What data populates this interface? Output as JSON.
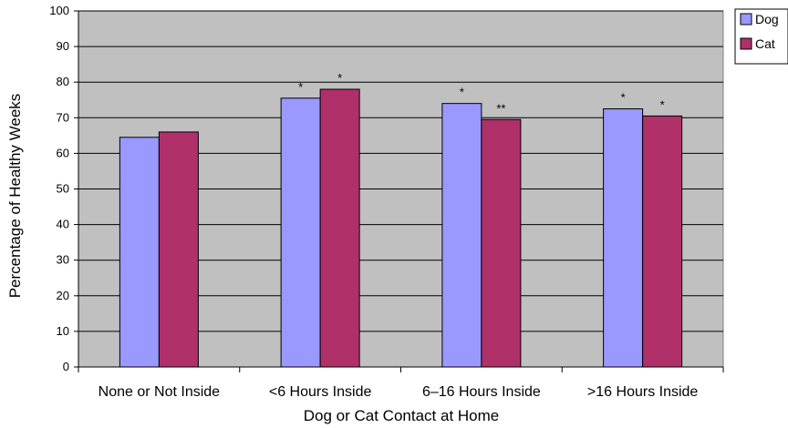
{
  "chart_data": {
    "type": "bar",
    "title": "",
    "xlabel": "Dog or Cat Contact at Home",
    "ylabel": "Percentage of Healthy Weeks",
    "ylim": [
      0,
      100
    ],
    "yticks": [
      0,
      10,
      20,
      30,
      40,
      50,
      60,
      70,
      80,
      90,
      100
    ],
    "grid": true,
    "legend_position": "top-right",
    "categories": [
      "None or Not Inside",
      "<6 Hours Inside",
      "6–16 Hours Inside",
      ">16 Hours Inside"
    ],
    "series": [
      {
        "name": "Dog",
        "color": "#9999ff",
        "values": [
          64.5,
          75.5,
          74,
          72.5
        ],
        "annotations": [
          "",
          "*",
          "*",
          "*"
        ]
      },
      {
        "name": "Cat",
        "color": "#b0306a",
        "values": [
          66,
          78,
          69.5,
          70.5
        ],
        "annotations": [
          "",
          "*",
          "**",
          "*"
        ]
      }
    ],
    "plot_background": "#c0c0c0"
  }
}
